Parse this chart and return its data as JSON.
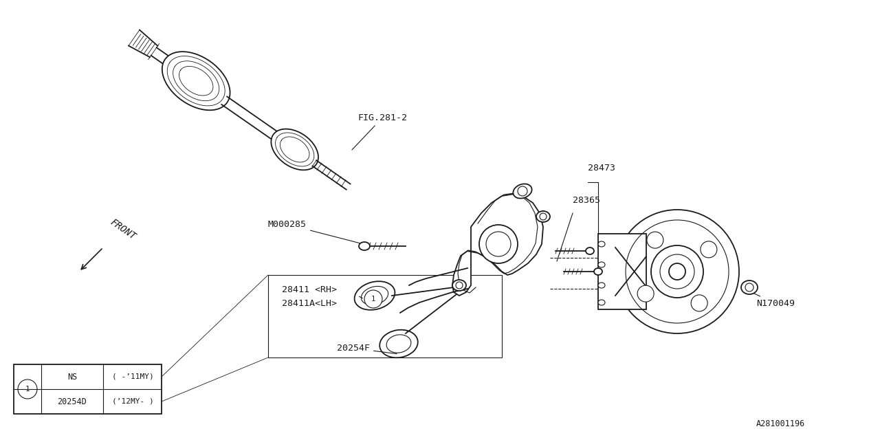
{
  "bg_color": "#ffffff",
  "line_color": "#1a1a1a",
  "fig_width": 12.8,
  "fig_height": 6.4,
  "labels": {
    "FIG281_2": "FIG.281-2",
    "M000285": "M000285",
    "FRONT": "FRONT",
    "28473": "28473",
    "28365": "28365",
    "28411RH": "28411 <RH>",
    "28411ALH": "28411A<LH>",
    "20254F": "20254F",
    "N170049": "N170049",
    "A281001196": "A281001196"
  },
  "table_rows": [
    [
      "NS",
      "( -’11MY)"
    ],
    [
      "20254D",
      "(’12MY- )"
    ]
  ]
}
